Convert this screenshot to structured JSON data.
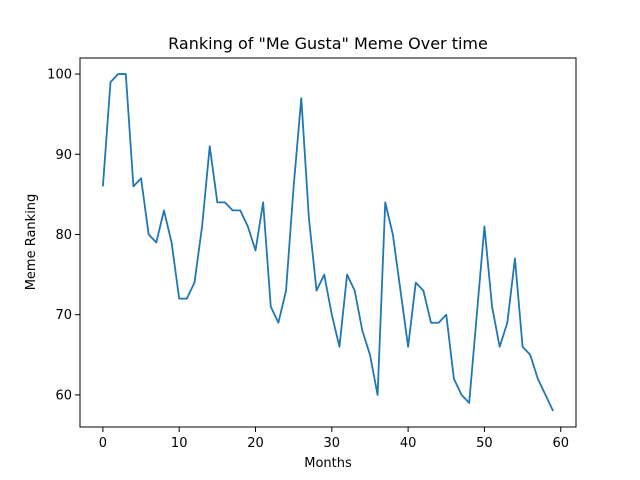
{
  "chart_data": {
    "type": "line",
    "title": "Ranking of \"Me Gusta\" Meme Over time",
    "xlabel": "Months",
    "ylabel": "Meme Ranking",
    "xlim": [
      -3,
      62
    ],
    "ylim": [
      56,
      102
    ],
    "xticks": [
      0,
      10,
      20,
      30,
      40,
      50,
      60
    ],
    "yticks": [
      60,
      70,
      80,
      90,
      100
    ],
    "grid": false,
    "series": [
      {
        "color": "#1f77b4",
        "x": [
          0,
          1,
          2,
          3,
          4,
          5,
          6,
          7,
          8,
          9,
          10,
          11,
          12,
          13,
          14,
          15,
          16,
          17,
          18,
          19,
          20,
          21,
          22,
          23,
          24,
          25,
          26,
          27,
          28,
          29,
          30,
          31,
          32,
          33,
          34,
          35,
          36,
          37,
          38,
          39,
          40,
          41,
          42,
          43,
          44,
          45,
          46,
          47,
          48,
          49,
          50,
          51,
          52,
          53,
          54,
          55,
          56,
          57,
          58,
          59
        ],
        "values": [
          86,
          99,
          100,
          100,
          86,
          87,
          80,
          79,
          83,
          79,
          72,
          72,
          74,
          81,
          91,
          84,
          84,
          83,
          83,
          81,
          78,
          84,
          71,
          69,
          73,
          86,
          97,
          82,
          73,
          75,
          70,
          66,
          75,
          73,
          68,
          65,
          60,
          84,
          80,
          73,
          66,
          74,
          73,
          69,
          69,
          70,
          62,
          60,
          59,
          70,
          81,
          71,
          66,
          69,
          77,
          66,
          65,
          62,
          60,
          58
        ]
      }
    ]
  }
}
